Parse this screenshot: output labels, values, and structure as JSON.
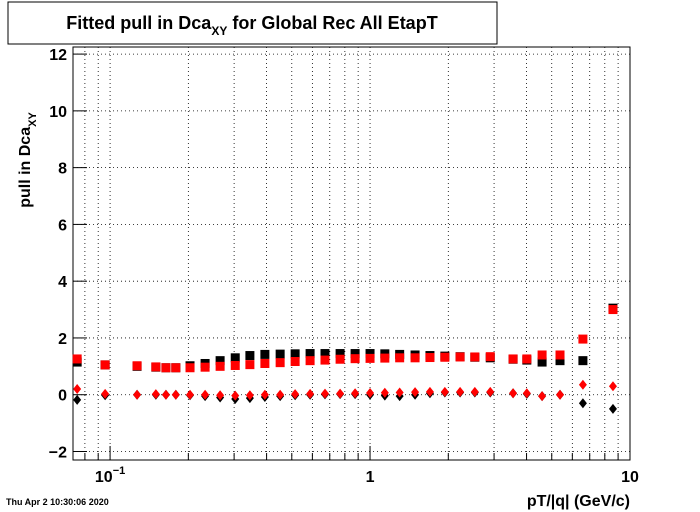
{
  "chart_data": {
    "type": "scatter",
    "title": {
      "text": "Fitted pull in Dca",
      "sub": "XY",
      "rest": " for Global Rec All EtapT"
    },
    "y_label": {
      "text": "pull in Dca",
      "sub": "XY"
    },
    "x_label": "pT/|q| (GeV/c)",
    "timestamp": "Thu Apr  2 10:30:06 2020",
    "log_x": true,
    "grid": true,
    "xlim": [
      0.072,
      10
    ],
    "ylim": [
      -2.3,
      12.25
    ],
    "xticks": [
      {
        "value": 0.1,
        "label": "10",
        "exponent": "−1"
      },
      1,
      10
    ],
    "yticks": [
      {
        "value": -2,
        "label": "−2"
      },
      0,
      2,
      4,
      6,
      8,
      10,
      12
    ],
    "x": [
      0.0747,
      0.0957,
      0.127,
      0.15,
      0.164,
      0.179,
      0.203,
      0.232,
      0.265,
      0.303,
      0.345,
      0.394,
      0.451,
      0.515,
      0.588,
      0.671,
      0.767,
      0.876,
      1.0,
      1.14,
      1.3,
      1.49,
      1.7,
      1.94,
      2.22,
      2.53,
      2.9,
      3.55,
      4.01,
      4.59,
      5.38,
      6.59,
      8.6
    ],
    "series": [
      {
        "name": "black-square",
        "marker": "square",
        "color": "#000000",
        "values": [
          1.15,
          1.05,
          1.0,
          0.97,
          0.95,
          0.95,
          1.02,
          1.1,
          1.2,
          1.3,
          1.38,
          1.42,
          1.43,
          1.44,
          1.45,
          1.45,
          1.45,
          1.45,
          1.45,
          1.44,
          1.42,
          1.4,
          1.38,
          1.36,
          1.34,
          1.32,
          1.3,
          1.25,
          1.22,
          1.15,
          1.2,
          1.2,
          3.05
        ]
      },
      {
        "name": "red-square",
        "marker": "square",
        "color": "#ff0000",
        "values": [
          1.26,
          1.05,
          1.02,
          0.98,
          0.95,
          0.95,
          0.95,
          0.97,
          1.0,
          1.03,
          1.06,
          1.1,
          1.13,
          1.17,
          1.2,
          1.22,
          1.25,
          1.27,
          1.28,
          1.29,
          1.3,
          1.3,
          1.31,
          1.32,
          1.33,
          1.33,
          1.34,
          1.26,
          1.26,
          1.4,
          1.4,
          1.96,
          3.0
        ]
      },
      {
        "name": "black-diamond",
        "marker": "diamond",
        "color": "#000000",
        "values": [
          -0.18,
          -0.02,
          0.0,
          0.0,
          0.0,
          0.0,
          -0.02,
          -0.05,
          -0.1,
          -0.15,
          -0.12,
          -0.08,
          -0.05,
          -0.02,
          0,
          0.01,
          0.02,
          0.02,
          0.0,
          -0.03,
          -0.05,
          0.0,
          0.05,
          0.08,
          0.08,
          0.08,
          0.08,
          0.05,
          0.03,
          -0.05,
          0.0,
          -0.3,
          -0.5
        ]
      },
      {
        "name": "red-diamond",
        "marker": "diamond",
        "color": "#ff0000",
        "values": [
          0.2,
          0.03,
          0.0,
          0.02,
          0.0,
          0.0,
          0.0,
          0.0,
          -0.02,
          -0.03,
          -0.02,
          0.0,
          0.0,
          0.02,
          0.03,
          0.04,
          0.04,
          0.05,
          0.06,
          0.07,
          0.08,
          0.09,
          0.1,
          0.1,
          0.1,
          0.1,
          0.1,
          0.05,
          0.05,
          -0.05,
          0.0,
          0.35,
          0.3
        ]
      }
    ]
  }
}
